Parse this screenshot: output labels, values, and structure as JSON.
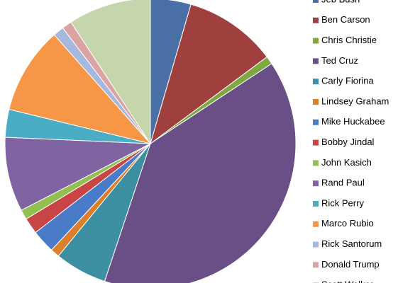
{
  "chart_data": {
    "type": "pie",
    "categories": [
      "Jeb Bush",
      "Ben Carson",
      "Chris Christie",
      "Ted Cruz",
      "Carly Fiorina",
      "Lindsey Graham",
      "Mike Huckabee",
      "Bobby Jindal",
      "John Kasich",
      "Rand Paul",
      "Rick Perry",
      "Marco Rubio",
      "Rick Santorum",
      "Donald Trump",
      "Scott Walker"
    ],
    "values": [
      4.5,
      10.3,
      0.9,
      39.4,
      5.8,
      1.0,
      2.6,
      1.8,
      1.1,
      8.3,
      3.1,
      9.7,
      1.2,
      1.1,
      9.2
    ],
    "colors": [
      "#4a6fa5",
      "#a0403e",
      "#7fa843",
      "#6a4f87",
      "#3b8fa0",
      "#dc7f2a",
      "#4a7bc8",
      "#c94444",
      "#92c050",
      "#8064a2",
      "#4bacc6",
      "#f79646",
      "#a5b8de",
      "#dba3a3",
      "#c5d6ad"
    ],
    "legend": "right"
  }
}
